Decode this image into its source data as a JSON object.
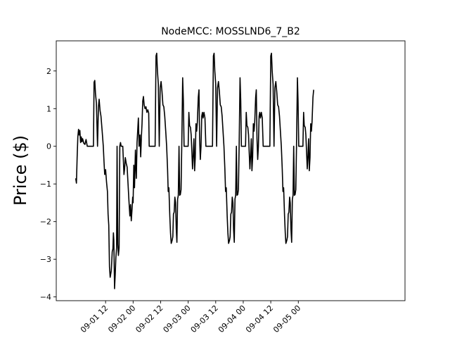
{
  "chart_data": {
    "type": "line",
    "title": "NodeMCC: MOSSLND6_7_B2",
    "xlabel": "",
    "ylabel": "Price ($)",
    "grid": false,
    "line_color": "#000000",
    "xlim_hours": [
      -9.5,
      142.5
    ],
    "ylim": [
      -4.1,
      2.8
    ],
    "y_ticks": [
      -4,
      -3,
      -2,
      -1,
      0,
      1,
      2
    ],
    "x_ticks": [
      {
        "h": 12,
        "label": "09-01 12"
      },
      {
        "h": 24,
        "label": "09-02 00"
      },
      {
        "h": 36,
        "label": "09-02 12"
      },
      {
        "h": 48,
        "label": "09-03 00"
      },
      {
        "h": 60,
        "label": "09-03 12"
      },
      {
        "h": 72,
        "label": "09-04 00"
      },
      {
        "h": 84,
        "label": "09-04 12"
      },
      {
        "h": 96,
        "label": "09-05 00"
      }
    ],
    "series": [
      {
        "name": "",
        "points": [
          [
            -1.0,
            -0.85
          ],
          [
            -0.7,
            -0.98
          ],
          [
            -0.4,
            -0.3
          ],
          [
            -0.1,
            0.25
          ],
          [
            0.2,
            0.45
          ],
          [
            0.5,
            0.3
          ],
          [
            0.8,
            0.42
          ],
          [
            1.1,
            0.1
          ],
          [
            1.4,
            0.25
          ],
          [
            1.7,
            0.12
          ],
          [
            2.0,
            0.2
          ],
          [
            2.5,
            0.08
          ],
          [
            3.0,
            0.05
          ],
          [
            3.5,
            0.18
          ],
          [
            4.0,
            0.0
          ],
          [
            6.0,
            0.0
          ],
          [
            6.7,
            0.0
          ],
          [
            7.0,
            1.7
          ],
          [
            7.3,
            1.75
          ],
          [
            7.6,
            1.4
          ],
          [
            8.0,
            1.15
          ],
          [
            8.5,
            0.0
          ],
          [
            8.9,
            1.05
          ],
          [
            9.2,
            1.25
          ],
          [
            9.6,
            0.95
          ],
          [
            10.0,
            0.8
          ],
          [
            10.5,
            0.4
          ],
          [
            11.0,
            0.0
          ],
          [
            11.3,
            -0.4
          ],
          [
            11.6,
            -0.75
          ],
          [
            12.0,
            -0.62
          ],
          [
            12.4,
            -0.95
          ],
          [
            12.8,
            -1.2
          ],
          [
            13.1,
            -1.8
          ],
          [
            13.4,
            -2.1
          ],
          [
            13.7,
            -3.2
          ],
          [
            14.0,
            -3.48
          ],
          [
            14.5,
            -3.3
          ],
          [
            14.9,
            -2.8
          ],
          [
            15.2,
            -2.72
          ],
          [
            15.4,
            -2.3
          ],
          [
            15.6,
            -2.5
          ],
          [
            15.9,
            -3.78
          ],
          [
            16.2,
            -3.4
          ],
          [
            16.5,
            -2.95
          ],
          [
            16.8,
            -2.7
          ],
          [
            17.0,
            0.0
          ],
          [
            17.3,
            -2.6
          ],
          [
            17.6,
            -2.9
          ],
          [
            17.9,
            -2.7
          ],
          [
            18.2,
            0.0
          ],
          [
            18.5,
            0.1
          ],
          [
            18.8,
            0.0
          ],
          [
            19.5,
            0.0
          ],
          [
            20.0,
            -0.75
          ],
          [
            20.3,
            -0.6
          ],
          [
            20.6,
            -0.3
          ],
          [
            21.0,
            -0.45
          ],
          [
            21.4,
            -0.55
          ],
          [
            21.8,
            -1.0
          ],
          [
            22.2,
            -1.45
          ],
          [
            22.6,
            -1.85
          ],
          [
            22.9,
            -1.55
          ],
          [
            23.2,
            -1.98
          ],
          [
            23.5,
            -1.7
          ],
          [
            23.8,
            -1.35
          ],
          [
            24.0,
            -1.5
          ],
          [
            24.3,
            -0.5
          ],
          [
            24.6,
            -1.1
          ],
          [
            25.0,
            -0.1
          ],
          [
            25.4,
            -0.85
          ],
          [
            25.7,
            0.1
          ],
          [
            26.0,
            0.4
          ],
          [
            26.3,
            0.75
          ],
          [
            26.6,
            0.0
          ],
          [
            27.0,
            0.3
          ],
          [
            27.3,
            -0.28
          ],
          [
            27.6,
            0.25
          ],
          [
            27.9,
            0.6
          ],
          [
            28.2,
            1.2
          ],
          [
            28.5,
            1.32
          ],
          [
            28.8,
            1.1
          ],
          [
            29.2,
            1.0
          ],
          [
            29.6,
            1.05
          ],
          [
            30.0,
            0.9
          ],
          [
            30.4,
            0.97
          ],
          [
            30.8,
            0.88
          ],
          [
            31.0,
            0.0
          ],
          [
            32.0,
            0.0
          ],
          [
            33.0,
            0.0
          ],
          [
            33.6,
            0.0
          ],
          [
            34.0,
            2.4
          ],
          [
            34.3,
            2.47
          ],
          [
            34.6,
            2.0
          ],
          [
            35.0,
            1.65
          ],
          [
            35.4,
            0.0
          ],
          [
            35.8,
            1.55
          ],
          [
            36.2,
            1.72
          ],
          [
            36.6,
            1.45
          ],
          [
            37.0,
            1.1
          ],
          [
            37.4,
            1.05
          ],
          [
            37.8,
            0.8
          ],
          [
            38.2,
            0.4
          ],
          [
            38.6,
            0.0
          ],
          [
            39.0,
            -0.6
          ],
          [
            39.3,
            -1.2
          ],
          [
            39.6,
            -1.1
          ],
          [
            40.0,
            -1.85
          ],
          [
            40.3,
            -2.3
          ],
          [
            40.6,
            -2.58
          ],
          [
            41.0,
            -2.5
          ],
          [
            41.3,
            -2.4
          ],
          [
            41.6,
            -1.8
          ],
          [
            41.9,
            -1.75
          ],
          [
            42.2,
            -1.35
          ],
          [
            42.5,
            -1.5
          ],
          [
            42.8,
            -2.2
          ],
          [
            43.1,
            -2.55
          ],
          [
            43.4,
            -1.4
          ],
          [
            43.7,
            -1.3
          ],
          [
            44.0,
            0.0
          ],
          [
            44.3,
            -1.3
          ],
          [
            44.6,
            -1.28
          ],
          [
            44.9,
            -1.15
          ],
          [
            45.2,
            0.0
          ],
          [
            45.6,
            1.82
          ],
          [
            45.9,
            1.2
          ],
          [
            46.2,
            0.0
          ],
          [
            47.5,
            0.0
          ],
          [
            48.0,
            0.0
          ],
          [
            48.3,
            0.9
          ],
          [
            48.6,
            0.55
          ],
          [
            49.0,
            0.5
          ],
          [
            49.3,
            0.3
          ],
          [
            49.6,
            -0.15
          ],
          [
            49.9,
            -0.6
          ],
          [
            50.2,
            -0.25
          ],
          [
            50.5,
            0.2
          ],
          [
            50.8,
            -0.65
          ],
          [
            51.1,
            -0.3
          ],
          [
            51.4,
            0.6
          ],
          [
            51.7,
            0.4
          ],
          [
            52.0,
            0.65
          ],
          [
            52.4,
            1.3
          ],
          [
            52.7,
            1.5
          ],
          [
            53.0,
            0.2
          ],
          [
            53.3,
            -0.35
          ],
          [
            53.6,
            0.0
          ],
          [
            53.9,
            0.8
          ],
          [
            54.2,
            0.9
          ],
          [
            54.5,
            0.75
          ],
          [
            54.9,
            0.9
          ],
          [
            55.3,
            0.75
          ],
          [
            55.7,
            0.0
          ],
          [
            57.0,
            0.0
          ],
          [
            58.0,
            0.0
          ],
          [
            58.6,
            0.0
          ],
          [
            59.0,
            2.4
          ],
          [
            59.3,
            2.47
          ],
          [
            59.6,
            2.0
          ],
          [
            60.0,
            1.65
          ],
          [
            60.4,
            0.0
          ],
          [
            60.8,
            1.55
          ],
          [
            61.2,
            1.72
          ],
          [
            61.6,
            1.45
          ],
          [
            62.0,
            1.1
          ],
          [
            62.4,
            1.05
          ],
          [
            62.8,
            0.8
          ],
          [
            63.2,
            0.4
          ],
          [
            63.6,
            0.0
          ],
          [
            64.0,
            -0.6
          ],
          [
            64.3,
            -1.2
          ],
          [
            64.6,
            -1.1
          ],
          [
            65.0,
            -1.85
          ],
          [
            65.3,
            -2.3
          ],
          [
            65.6,
            -2.58
          ],
          [
            66.0,
            -2.5
          ],
          [
            66.3,
            -2.4
          ],
          [
            66.6,
            -1.8
          ],
          [
            66.9,
            -1.75
          ],
          [
            67.2,
            -1.35
          ],
          [
            67.5,
            -1.5
          ],
          [
            67.8,
            -2.2
          ],
          [
            68.1,
            -2.55
          ],
          [
            68.4,
            -1.4
          ],
          [
            68.7,
            -1.3
          ],
          [
            69.0,
            0.0
          ],
          [
            69.3,
            -1.3
          ],
          [
            69.6,
            -1.28
          ],
          [
            69.9,
            -1.15
          ],
          [
            70.2,
            0.0
          ],
          [
            70.6,
            1.82
          ],
          [
            70.9,
            1.2
          ],
          [
            71.2,
            0.0
          ],
          [
            72.5,
            0.0
          ],
          [
            73.0,
            0.0
          ],
          [
            73.3,
            0.9
          ],
          [
            73.6,
            0.55
          ],
          [
            74.0,
            0.5
          ],
          [
            74.3,
            0.3
          ],
          [
            74.6,
            -0.15
          ],
          [
            74.9,
            -0.6
          ],
          [
            75.2,
            -0.25
          ],
          [
            75.5,
            0.2
          ],
          [
            75.8,
            -0.65
          ],
          [
            76.1,
            -0.3
          ],
          [
            76.4,
            0.6
          ],
          [
            76.7,
            0.4
          ],
          [
            77.0,
            0.65
          ],
          [
            77.4,
            1.3
          ],
          [
            77.7,
            1.5
          ],
          [
            78.0,
            0.2
          ],
          [
            78.3,
            -0.35
          ],
          [
            78.6,
            0.0
          ],
          [
            78.9,
            0.8
          ],
          [
            79.2,
            0.9
          ],
          [
            79.5,
            0.75
          ],
          [
            79.9,
            0.9
          ],
          [
            80.3,
            0.75
          ],
          [
            80.7,
            0.0
          ],
          [
            82.0,
            0.0
          ],
          [
            83.0,
            0.0
          ],
          [
            83.6,
            0.0
          ],
          [
            84.0,
            2.4
          ],
          [
            84.3,
            2.47
          ],
          [
            84.6,
            2.0
          ],
          [
            85.0,
            1.65
          ],
          [
            85.4,
            0.0
          ],
          [
            85.8,
            1.55
          ],
          [
            86.2,
            1.72
          ],
          [
            86.6,
            1.45
          ],
          [
            87.0,
            1.1
          ],
          [
            87.4,
            1.05
          ],
          [
            87.8,
            0.8
          ],
          [
            88.2,
            0.4
          ],
          [
            88.6,
            0.0
          ],
          [
            89.0,
            -0.6
          ],
          [
            89.3,
            -1.2
          ],
          [
            89.6,
            -1.1
          ],
          [
            90.0,
            -1.85
          ],
          [
            90.3,
            -2.3
          ],
          [
            90.6,
            -2.58
          ],
          [
            91.0,
            -2.5
          ],
          [
            91.3,
            -2.4
          ],
          [
            91.6,
            -1.8
          ],
          [
            91.9,
            -1.75
          ],
          [
            92.2,
            -1.35
          ],
          [
            92.5,
            -1.5
          ],
          [
            92.8,
            -2.2
          ],
          [
            93.1,
            -2.55
          ],
          [
            93.4,
            -1.4
          ],
          [
            93.7,
            -1.3
          ],
          [
            94.0,
            0.0
          ],
          [
            94.3,
            -1.3
          ],
          [
            94.6,
            -1.28
          ],
          [
            94.9,
            -1.15
          ],
          [
            95.2,
            0.0
          ],
          [
            95.6,
            1.82
          ],
          [
            95.9,
            1.2
          ],
          [
            96.2,
            0.0
          ],
          [
            97.5,
            0.0
          ],
          [
            98.0,
            0.0
          ],
          [
            98.3,
            0.9
          ],
          [
            98.6,
            0.55
          ],
          [
            99.0,
            0.5
          ],
          [
            99.3,
            0.3
          ],
          [
            99.6,
            -0.15
          ],
          [
            99.9,
            -0.6
          ],
          [
            100.2,
            -0.25
          ],
          [
            100.5,
            0.2
          ],
          [
            100.8,
            -0.65
          ],
          [
            101.1,
            -0.3
          ],
          [
            101.4,
            0.6
          ],
          [
            101.7,
            0.4
          ],
          [
            102.0,
            0.65
          ],
          [
            102.4,
            1.3
          ],
          [
            102.7,
            1.5
          ]
        ]
      }
    ]
  }
}
